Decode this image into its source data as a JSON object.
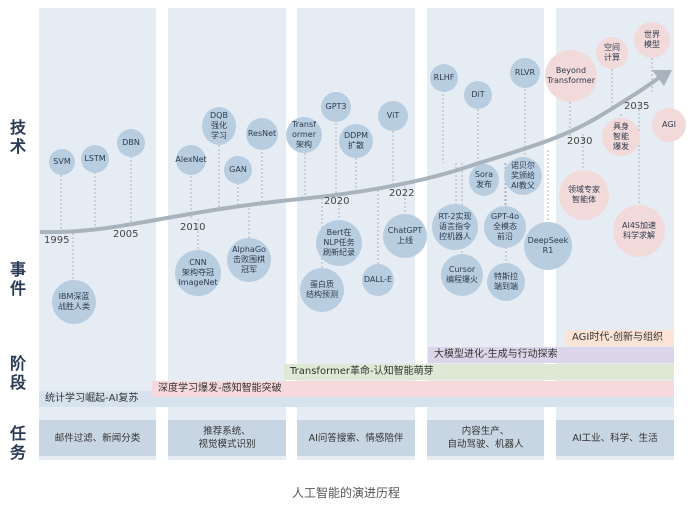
{
  "row_labels": {
    "tech": "技\n术",
    "events": "事\n件",
    "stages": "阶\n段",
    "tasks": "任\n务"
  },
  "nodes": [
    {
      "id": "svm",
      "label": "SVM",
      "color": "blue"
    },
    {
      "id": "lstm",
      "label": "LSTM",
      "color": "blue"
    },
    {
      "id": "dbn",
      "label": "DBN",
      "color": "blue"
    },
    {
      "id": "ibm",
      "label": "IBM深蓝\n战胜人类",
      "color": "blue"
    },
    {
      "id": "alexnet",
      "label": "AlexNet",
      "color": "blue"
    },
    {
      "id": "dqb",
      "label": "DQB\n强化\n学习",
      "color": "blue"
    },
    {
      "id": "gan",
      "label": "GAN",
      "color": "blue"
    },
    {
      "id": "resnet",
      "label": "ResNet",
      "color": "blue"
    },
    {
      "id": "cnn",
      "label": "CNN\n架构夺冠\nImageNet",
      "color": "blue"
    },
    {
      "id": "alphago",
      "label": "AlphaGo\n击败围棋\n冠军",
      "color": "blue"
    },
    {
      "id": "transformer",
      "label": "Transf\normer\n架构",
      "color": "blue"
    },
    {
      "id": "gpt3",
      "label": "GPT3",
      "color": "blue"
    },
    {
      "id": "ddpm",
      "label": "DDPM\n扩散",
      "color": "blue"
    },
    {
      "id": "vit",
      "label": "ViT",
      "color": "blue"
    },
    {
      "id": "bert",
      "label": "Bert在\nNLP任务\n刷新纪录",
      "color": "blue"
    },
    {
      "id": "protein",
      "label": "蛋白质\n结构预测",
      "color": "blue"
    },
    {
      "id": "dalle",
      "label": "DALL-E",
      "color": "blue"
    },
    {
      "id": "chatgpt",
      "label": "ChatGPT\n上线",
      "color": "blue"
    },
    {
      "id": "rlhf",
      "label": "RLHF",
      "color": "blue"
    },
    {
      "id": "dit",
      "label": "DiT",
      "color": "blue"
    },
    {
      "id": "rlvr",
      "label": "RLVR",
      "color": "blue"
    },
    {
      "id": "sora",
      "label": "Sora\n发布",
      "color": "blue"
    },
    {
      "id": "nobel",
      "label": "诺贝尔\n奖颁给\nAI教父",
      "color": "blue"
    },
    {
      "id": "rt2",
      "label": "RT-2实现\n语言指令\n控机器人",
      "color": "blue"
    },
    {
      "id": "gpt4o",
      "label": "GPT-4o\n全模态\n前沿",
      "color": "blue"
    },
    {
      "id": "deepseek",
      "label": "DeepSeek\nR1",
      "color": "blue"
    },
    {
      "id": "cursor",
      "label": "Cursor\n编程爆火",
      "color": "blue"
    },
    {
      "id": "tesla",
      "label": "特斯拉\n端到端",
      "color": "blue"
    },
    {
      "id": "beyond",
      "label": "Beyond\nTransformer",
      "color": "pink"
    },
    {
      "id": "space",
      "label": "空间\n计算",
      "color": "pink"
    },
    {
      "id": "world",
      "label": "世界\n模型",
      "color": "pink"
    },
    {
      "id": "embodied",
      "label": "具身\n智能\n爆发",
      "color": "pink"
    },
    {
      "id": "agi",
      "label": "AGI",
      "color": "pink"
    },
    {
      "id": "domain",
      "label": "领域专家\n智能体",
      "color": "pink"
    },
    {
      "id": "ai4s",
      "label": "AI4S加速\n科学求解",
      "color": "pink"
    }
  ],
  "years": [
    "1995",
    "2005",
    "2010",
    "2020",
    "2022",
    "2030",
    "2035"
  ],
  "stages": [
    {
      "label": "AGI时代-创新与组织",
      "color": "#fbe3d6"
    },
    {
      "label": "大模型进化-生成与行动探索",
      "color": "#ddd6ea"
    },
    {
      "label": "Transformer革命-认知智能萌芽",
      "color": "#dde9d4"
    },
    {
      "label": "深度学习爆发-感知智能突破",
      "color": "#f6d9dc"
    },
    {
      "label": "统计学习崛起-AI复苏",
      "color": "#d6e2ee"
    }
  ],
  "tasks": [
    "邮件过滤、新闻分类",
    "推荐系统、\n视觉模式识别",
    "AI问答搜索、情感陪伴",
    "内容生产、\n自动驾驶、机器人",
    "AI工业、科学、生活"
  ],
  "caption": "人工智能的演进历程",
  "colors": {
    "column": "#e6ecf3",
    "node_blue": "#b9cde0",
    "node_pink": "#f2dada",
    "curve": "#a9b3bd",
    "task": "#c8d5e3"
  }
}
